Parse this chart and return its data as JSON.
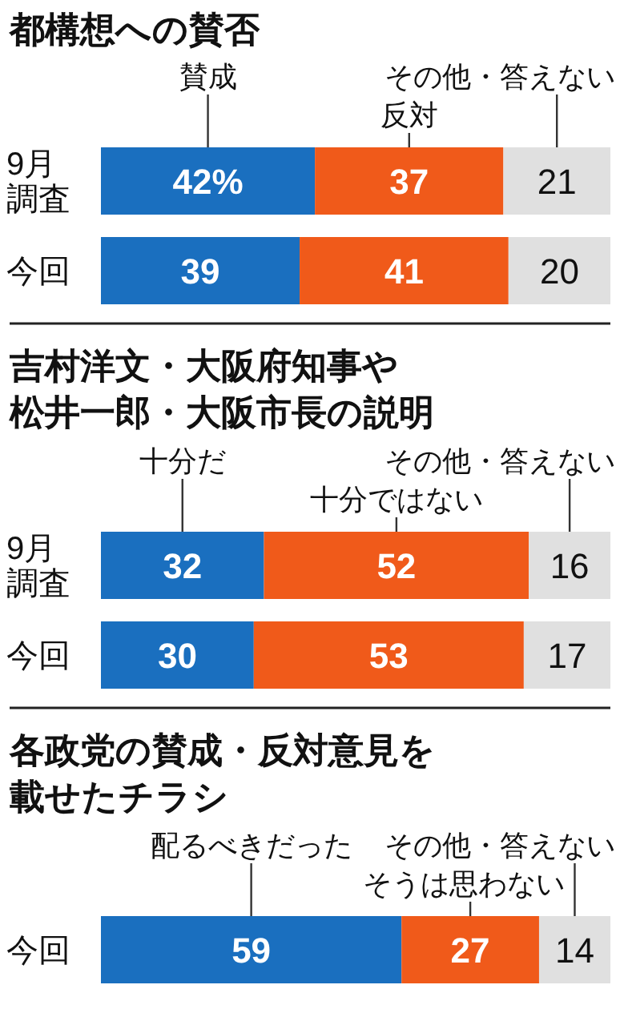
{
  "chart_data": [
    {
      "type": "bar",
      "orientation": "horizontal",
      "stacked": true,
      "title": "都構想への賛否",
      "categories": [
        "9月調査",
        "今回"
      ],
      "series": [
        {
          "name": "賛成",
          "color": "#1a6fbf",
          "values": [
            42,
            39
          ],
          "value_labels": [
            "42%",
            "39"
          ]
        },
        {
          "name": "反対",
          "color": "#f05a1a",
          "values": [
            37,
            41
          ],
          "value_labels": [
            "37",
            "41"
          ]
        },
        {
          "name": "その他・答えない",
          "color": "#e0e0e0",
          "values": [
            21,
            20
          ],
          "value_labels": [
            "21",
            "20"
          ]
        }
      ]
    },
    {
      "type": "bar",
      "orientation": "horizontal",
      "stacked": true,
      "title": "吉村洋文・大阪府知事や松井一郎・大阪市長の説明",
      "categories": [
        "9月調査",
        "今回"
      ],
      "series": [
        {
          "name": "十分だ",
          "color": "#1a6fbf",
          "values": [
            32,
            30
          ],
          "value_labels": [
            "32",
            "30"
          ]
        },
        {
          "name": "十分ではない",
          "color": "#f05a1a",
          "values": [
            52,
            53
          ],
          "value_labels": [
            "52",
            "53"
          ]
        },
        {
          "name": "その他・答えない",
          "color": "#e0e0e0",
          "values": [
            16,
            17
          ],
          "value_labels": [
            "16",
            "17"
          ]
        }
      ]
    },
    {
      "type": "bar",
      "orientation": "horizontal",
      "stacked": true,
      "title": "各政党の賛成・反対意見を載せたチラシ",
      "categories": [
        "今回"
      ],
      "series": [
        {
          "name": "配るべきだった",
          "color": "#1a6fbf",
          "values": [
            59
          ],
          "value_labels": [
            "59"
          ]
        },
        {
          "name": "そうは思わない",
          "color": "#f05a1a",
          "values": [
            27
          ],
          "value_labels": [
            "27"
          ]
        },
        {
          "name": "その他・答えない",
          "color": "#e0e0e0",
          "values": [
            14
          ],
          "value_labels": [
            "14"
          ]
        }
      ]
    }
  ]
}
